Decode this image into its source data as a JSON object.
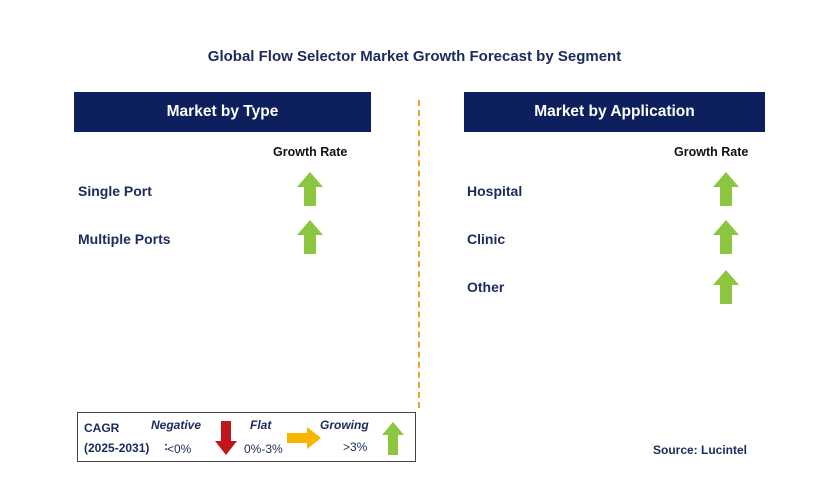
{
  "title": "Global Flow Selector Market Growth Forecast by Segment",
  "left_panel": {
    "header": "Market by Type",
    "growth_rate_label": "Growth Rate",
    "rows": [
      {
        "label": "Single Port",
        "trend": "growing"
      },
      {
        "label": "Multiple Ports",
        "trend": "growing"
      }
    ]
  },
  "right_panel": {
    "header": "Market by Application",
    "growth_rate_label": "Growth Rate",
    "rows": [
      {
        "label": "Hospital",
        "trend": "growing"
      },
      {
        "label": "Clinic",
        "trend": "growing"
      },
      {
        "label": "Other",
        "trend": "growing"
      }
    ]
  },
  "legend": {
    "cagr_label": "CAGR",
    "period": "(2025-2031)",
    "colon": ":",
    "negative_label": "Negative",
    "negative_range": "<0%",
    "flat_label": "Flat",
    "flat_range": "0%-3%",
    "growing_label": "Growing",
    "growing_range": ">3%"
  },
  "source": "Source: Lucintel",
  "colors": {
    "header_bg": "#0d1f5c",
    "growing_arrow": "#8cc63f",
    "negative_arrow": "#c0161b",
    "flat_arrow": "#f7b500",
    "divider": "#f0a028"
  },
  "icons": {
    "growing": "green-up-arrow-icon",
    "negative": "red-down-arrow-icon",
    "flat": "yellow-right-arrow-icon"
  }
}
